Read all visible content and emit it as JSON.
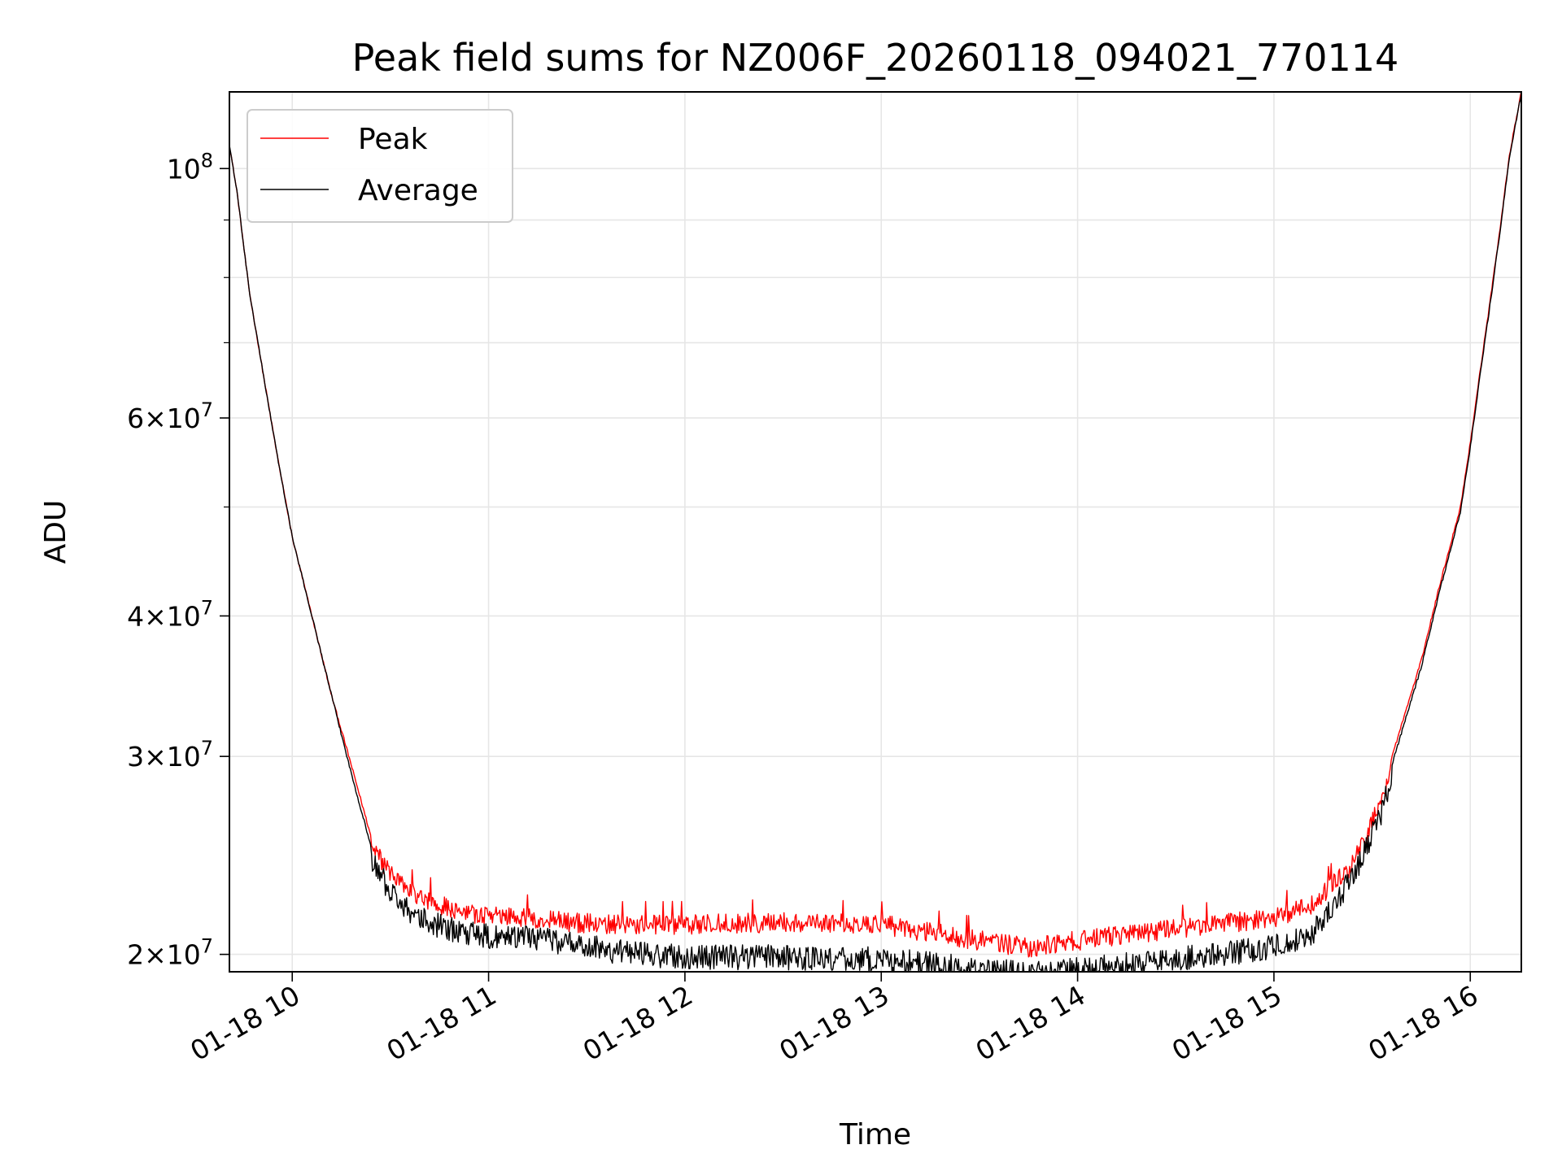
{
  "chart_data": {
    "type": "line",
    "title": "Peak field sums for NZ006F_20260118_094021_770114",
    "xlabel": "Time",
    "ylabel": "ADU",
    "yscale": "log",
    "xlim": [
      9.68,
      16.26
    ],
    "ylim": [
      19300000,
      117000000
    ],
    "grid": true,
    "legend": {
      "location": "top-left",
      "entries": [
        "Peak",
        "Average"
      ]
    },
    "x_ticks": [
      {
        "value": 10,
        "label": "01-18 10"
      },
      {
        "value": 11,
        "label": "01-18 11"
      },
      {
        "value": 12,
        "label": "01-18 12"
      },
      {
        "value": 13,
        "label": "01-18 13"
      },
      {
        "value": 14,
        "label": "01-18 14"
      },
      {
        "value": 15,
        "label": "01-18 15"
      },
      {
        "value": 16,
        "label": "01-18 16"
      }
    ],
    "y_ticks": [
      {
        "value": 20000000,
        "base": "2",
        "exp": "7"
      },
      {
        "value": 30000000,
        "base": "3",
        "exp": "7"
      },
      {
        "value": 40000000,
        "base": "4",
        "exp": "7"
      },
      {
        "value": 60000000,
        "base": "6",
        "exp": "7"
      },
      {
        "value": 100000000,
        "base": "",
        "exp": "8"
      }
    ],
    "y_minor_ticks": [
      50000000,
      70000000,
      80000000,
      90000000
    ],
    "series": [
      {
        "name": "Peak",
        "color": "#ff0000",
        "noise": 0.045,
        "x": [
          9.68,
          9.72,
          9.78,
          9.85,
          9.92,
          10.0,
          10.1,
          10.2,
          10.3,
          10.4,
          10.5,
          10.6,
          10.7,
          10.8,
          10.9,
          11.0,
          11.2,
          11.4,
          11.6,
          11.8,
          12.0,
          12.5,
          13.0,
          13.5,
          13.75,
          14.0,
          14.5,
          15.0,
          15.2,
          15.4,
          15.55,
          15.65,
          15.75,
          15.85,
          15.95,
          16.0,
          16.05,
          16.1,
          16.15,
          16.2,
          16.26
        ],
        "values": [
          105000000,
          95000000,
          78000000,
          66000000,
          56000000,
          47000000,
          40000000,
          34000000,
          29500000,
          25500000,
          24000000,
          23200000,
          22800000,
          22400000,
          22200000,
          22100000,
          22000000,
          21800000,
          21700000,
          21700000,
          21700000,
          21800000,
          21700000,
          21000000,
          20700000,
          21000000,
          21500000,
          22000000,
          22600000,
          24500000,
          28000000,
          32000000,
          36500000,
          43000000,
          50000000,
          57000000,
          66000000,
          76000000,
          88000000,
          103000000,
          117000000
        ]
      },
      {
        "name": "Average",
        "color": "#000000",
        "noise": 0.05,
        "x": [
          9.68,
          9.72,
          9.78,
          9.85,
          9.92,
          10.0,
          10.1,
          10.2,
          10.3,
          10.4,
          10.5,
          10.6,
          10.7,
          10.8,
          10.9,
          11.0,
          11.2,
          11.4,
          11.6,
          11.8,
          12.0,
          12.5,
          13.0,
          13.5,
          13.75,
          14.0,
          14.5,
          15.0,
          15.2,
          15.4,
          15.55,
          15.65,
          15.75,
          15.85,
          15.95,
          16.0,
          16.05,
          16.1,
          16.15,
          16.2,
          16.26
        ],
        "values": [
          105000000,
          95000000,
          78000000,
          66000000,
          56000000,
          47000000,
          40000000,
          34000000,
          29000000,
          25000000,
          23300000,
          22400000,
          21900000,
          21600000,
          21400000,
          21300000,
          21200000,
          21000000,
          20700000,
          20500000,
          20400000,
          20400000,
          20300000,
          19900000,
          19700000,
          19900000,
          20300000,
          20800000,
          21500000,
          24000000,
          27500000,
          31500000,
          36000000,
          42500000,
          49500000,
          56500000,
          65500000,
          75500000,
          87500000,
          102500000,
          116500000
        ]
      }
    ]
  }
}
